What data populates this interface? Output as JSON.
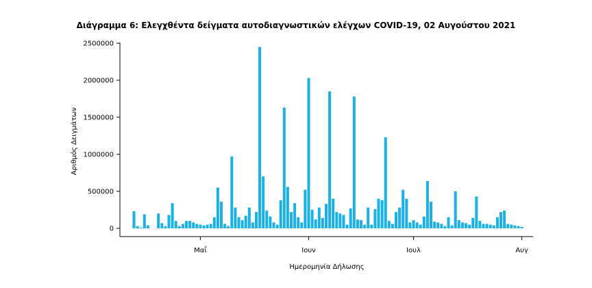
{
  "chart_data": {
    "type": "bar",
    "title": "Διάγραμμα 6: Ελεγχθέντα δείγματα αυτοδιαγνωστικών ελέγχων COVID-19, 02 Αυγούστου 2021",
    "xlabel": "Ημερομηνία Δήλωσης",
    "ylabel": "Αριθμός Δειγμάτων",
    "ylim": [
      0,
      2600000
    ],
    "yticks": [
      0,
      500000,
      1000000,
      1500000,
      2000000,
      2500000
    ],
    "ytick_labels": [
      "0",
      "500000",
      "1000000",
      "1500000",
      "2000000",
      "2500000"
    ],
    "x_start": "2021-04-12",
    "x_end": "2021-08-02",
    "xticks": [
      {
        "date": "2021-05-01",
        "label": "Μαΐ"
      },
      {
        "date": "2021-06-01",
        "label": "Ιουν"
      },
      {
        "date": "2021-07-01",
        "label": "Ιουλ"
      },
      {
        "date": "2021-08-01",
        "label": "Αυγ"
      }
    ],
    "grid": false,
    "values": [
      230000,
      30000,
      10000,
      190000,
      40000,
      0,
      0,
      200000,
      70000,
      30000,
      180000,
      340000,
      100000,
      30000,
      60000,
      100000,
      100000,
      80000,
      60000,
      50000,
      40000,
      50000,
      60000,
      150000,
      550000,
      360000,
      60000,
      30000,
      970000,
      280000,
      150000,
      110000,
      170000,
      280000,
      80000,
      220000,
      2450000,
      700000,
      240000,
      160000,
      80000,
      50000,
      380000,
      1630000,
      560000,
      220000,
      340000,
      150000,
      80000,
      520000,
      2030000,
      250000,
      120000,
      280000,
      140000,
      330000,
      1850000,
      400000,
      220000,
      200000,
      180000,
      50000,
      270000,
      1780000,
      120000,
      110000,
      50000,
      280000,
      50000,
      260000,
      400000,
      380000,
      1230000,
      100000,
      60000,
      220000,
      280000,
      520000,
      400000,
      80000,
      110000,
      80000,
      50000,
      160000,
      640000,
      360000,
      90000,
      80000,
      60000,
      30000,
      150000,
      40000,
      500000,
      110000,
      80000,
      70000,
      50000,
      140000,
      430000,
      100000,
      60000,
      60000,
      50000,
      40000,
      150000,
      220000,
      240000,
      60000,
      50000,
      40000,
      30000,
      20000
    ]
  }
}
